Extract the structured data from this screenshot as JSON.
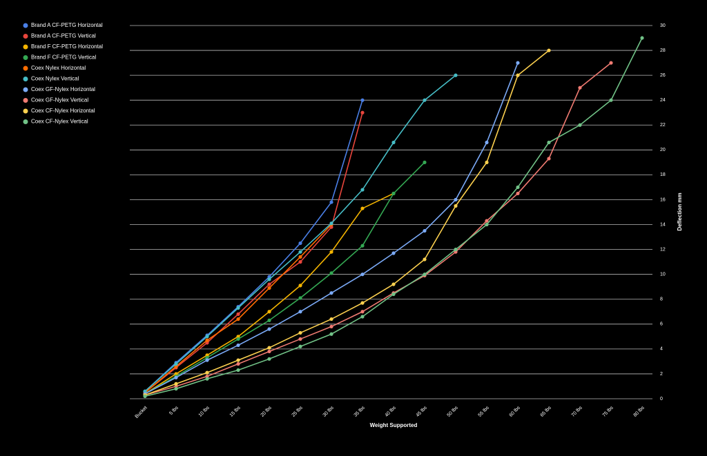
{
  "chart_data": {
    "type": "line",
    "xlabel": "Weight Supported",
    "ylabel": "Deflection mm",
    "categories": [
      "Bucket",
      "5 lbs",
      "10 lbs",
      "15 lbs",
      "20 lbs",
      "25 lbs",
      "30 lbs",
      "35 lbs",
      "40 lbs",
      "45 lbs",
      "50 lbs",
      "55 lbs",
      "60 lbs",
      "65 lbs",
      "70 lbs",
      "75 lbs",
      "80 lbs"
    ],
    "ylim": [
      0,
      30
    ],
    "yticks": [
      0,
      2,
      4,
      6,
      8,
      10,
      12,
      14,
      16,
      18,
      20,
      22,
      24,
      26,
      28,
      30
    ],
    "grid": true,
    "legend": "top-left",
    "series": [
      {
        "name": "Brand A CF-PETG Horizontal",
        "color": "#4a7fe6",
        "values": [
          0.6,
          2.9,
          5.1,
          7.4,
          9.8,
          12.5,
          15.8,
          24,
          null,
          null,
          null,
          null,
          null,
          null,
          null,
          null,
          null
        ]
      },
      {
        "name": "Brand A CF-PETG Vertical",
        "color": "#e8453c",
        "values": [
          0.5,
          2.5,
          4.5,
          6.8,
          9.2,
          11.0,
          13.8,
          23,
          null,
          null,
          null,
          null,
          null,
          null,
          null,
          null,
          null
        ]
      },
      {
        "name": "Brand F CF-PETG Horizontal",
        "color": "#f4b400",
        "values": [
          0.4,
          2.0,
          3.5,
          5.0,
          7.0,
          9.1,
          11.8,
          15.3,
          16.5,
          null,
          null,
          null,
          null,
          null,
          null,
          null,
          null
        ]
      },
      {
        "name": "Brand F CF-PETG Vertical",
        "color": "#34a853",
        "values": [
          0.4,
          1.8,
          3.3,
          4.8,
          6.3,
          8.1,
          10.1,
          12.3,
          16.5,
          19,
          null,
          null,
          null,
          null,
          null,
          null,
          null
        ]
      },
      {
        "name": "Coex Nylex Horizontal",
        "color": "#ff6d01",
        "values": [
          0.5,
          2.6,
          4.7,
          6.4,
          8.9,
          11.4,
          14.0,
          null,
          null,
          null,
          null,
          null,
          null,
          null,
          null,
          null,
          null
        ]
      },
      {
        "name": "Coex Nylex Vertical",
        "color": "#46bdc6",
        "values": [
          0.6,
          2.8,
          5.0,
          7.3,
          9.6,
          11.8,
          14.1,
          16.8,
          20.6,
          24,
          26,
          null,
          null,
          null,
          null,
          null,
          null
        ]
      },
      {
        "name": "Coex GF-Nylex Horizontal",
        "color": "#7baaf7",
        "values": [
          0.4,
          1.7,
          3.1,
          4.3,
          5.6,
          7.0,
          8.5,
          10.0,
          11.7,
          13.5,
          16.0,
          20.6,
          27,
          null,
          null,
          null,
          null
        ]
      },
      {
        "name": "Coex GF-Nylex Vertical",
        "color": "#f07b72",
        "values": [
          0.3,
          1.0,
          1.8,
          2.8,
          3.8,
          4.8,
          5.8,
          7.0,
          8.5,
          9.9,
          11.8,
          14.3,
          16.5,
          19.3,
          25,
          27,
          null
        ]
      },
      {
        "name": "Coex CF-Nylex Horizontal",
        "color": "#fcd04f",
        "values": [
          0.3,
          1.2,
          2.1,
          3.1,
          4.1,
          5.3,
          6.4,
          7.7,
          9.2,
          11.2,
          15.5,
          19,
          26,
          28,
          null,
          null,
          null
        ]
      },
      {
        "name": "Coex CF-Nylex Vertical",
        "color": "#71c287",
        "values": [
          0.2,
          0.8,
          1.6,
          2.3,
          3.2,
          4.2,
          5.2,
          6.6,
          8.4,
          10.0,
          12.0,
          14.0,
          17.0,
          20.6,
          22,
          24,
          29
        ]
      }
    ]
  }
}
